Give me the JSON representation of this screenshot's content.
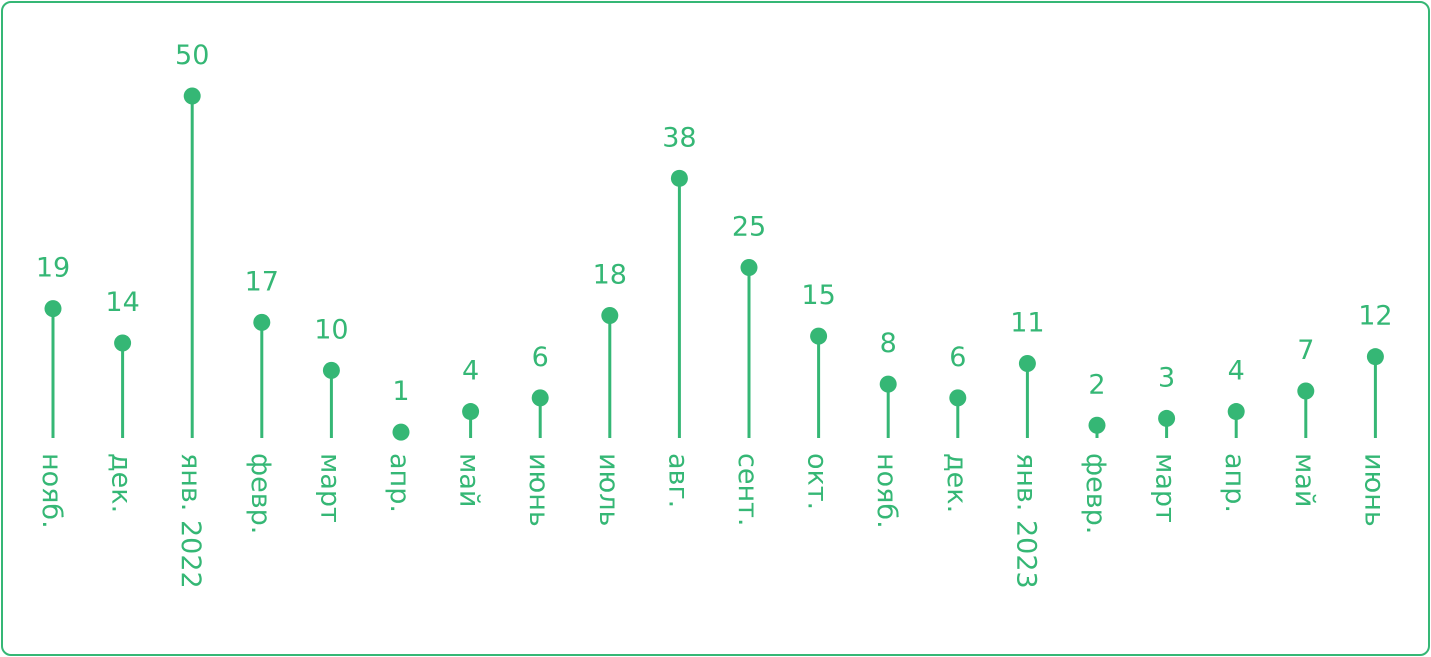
{
  "chart_data": {
    "type": "lollipop",
    "categories": [
      "нояб.",
      "дек.",
      "янв. 2022",
      "февр.",
      "март",
      "апр.",
      "май",
      "июнь",
      "июль",
      "авг.",
      "сент.",
      "окт.",
      "нояб.",
      "дек.",
      "янв. 2023",
      "февр.",
      "март",
      "апр.",
      "май",
      "июнь"
    ],
    "values": [
      19,
      14,
      50,
      17,
      10,
      1,
      4,
      6,
      18,
      38,
      25,
      15,
      8,
      6,
      11,
      2,
      3,
      4,
      7,
      12
    ],
    "title": "",
    "xlabel": "",
    "ylabel": "",
    "ylim": [
      0,
      50
    ],
    "grid": false,
    "legend": "none",
    "colors": {
      "accent": "#35b775",
      "border": "#35b775",
      "background": "#ffffff"
    }
  }
}
